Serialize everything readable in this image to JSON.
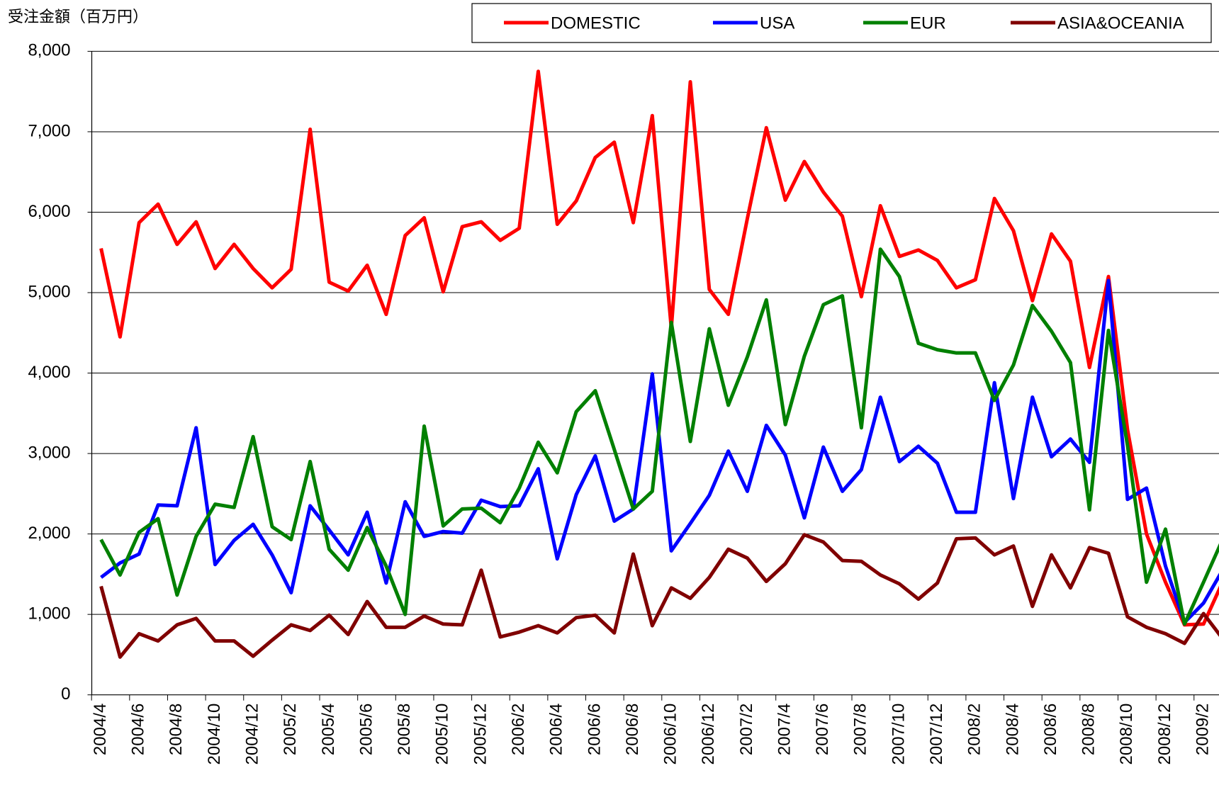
{
  "chart_data": {
    "type": "line",
    "y_axis_label": "受注金額（百万円）",
    "categories": [
      "2004/4",
      null,
      "2004/6",
      null,
      "2004/8",
      null,
      "2004/10",
      null,
      "2004/12",
      null,
      "2005/2",
      null,
      "2005/4",
      null,
      "2005/6",
      null,
      "2005/8",
      null,
      "2005/10",
      null,
      "2005/12",
      null,
      "2006/2",
      null,
      "2006/4",
      null,
      "2006/6",
      null,
      "2006/8",
      null,
      "2006/10",
      null,
      "2006/12",
      null,
      "2007/2",
      null,
      "2007/4",
      null,
      "2007/6",
      null,
      "2007/8",
      null,
      "2007/10",
      null,
      "2007/12",
      null,
      "2008/2",
      null,
      "2008/4",
      null,
      "2008/6",
      null,
      "2008/8",
      null,
      "2008/10",
      null,
      "2008/12",
      null,
      "2009/2",
      null
    ],
    "series": [
      {
        "name": "DOMESTIC",
        "color": "#ff0000",
        "values": [
          5550,
          4450,
          5870,
          6100,
          5600,
          5880,
          5300,
          5600,
          5300,
          5060,
          5290,
          7030,
          5130,
          5020,
          5340,
          4730,
          5710,
          5930,
          5010,
          5820,
          5880,
          5650,
          5800,
          7750,
          5850,
          6140,
          6680,
          6870,
          5870,
          7200,
          4560,
          7620,
          5040,
          4730,
          5920,
          7050,
          6150,
          6630,
          6250,
          5950,
          4950,
          6080,
          5450,
          5530,
          5400,
          5060,
          5160,
          6170,
          5770,
          4900,
          5730,
          5390,
          4070,
          5200,
          3300,
          2000,
          1400,
          870,
          880,
          1400
        ]
      },
      {
        "name": "USA",
        "color": "#0000ff",
        "values": [
          1460,
          1640,
          1750,
          2360,
          2350,
          3320,
          1620,
          1920,
          2120,
          1740,
          1270,
          2350,
          2050,
          1740,
          2270,
          1390,
          2400,
          1970,
          2030,
          2010,
          2420,
          2340,
          2350,
          2810,
          1690,
          2490,
          2970,
          2160,
          2310,
          3990,
          1790,
          2130,
          2480,
          3030,
          2530,
          3350,
          2980,
          2200,
          3080,
          2530,
          2800,
          3700,
          2900,
          3090,
          2880,
          2270,
          2270,
          3880,
          2440,
          3700,
          2960,
          3180,
          2890,
          5150,
          2430,
          2570,
          1600,
          900,
          1140,
          1550
        ]
      },
      {
        "name": "EUR",
        "color": "#008000",
        "values": [
          1930,
          1490,
          2020,
          2190,
          1240,
          1970,
          2370,
          2330,
          3210,
          2090,
          1930,
          2900,
          1810,
          1550,
          2080,
          1600,
          1000,
          3340,
          2100,
          2310,
          2320,
          2140,
          2570,
          3140,
          2760,
          3520,
          3780,
          3050,
          2310,
          2530,
          4630,
          3150,
          4550,
          3600,
          4200,
          4910,
          3360,
          4210,
          4850,
          4960,
          3320,
          5540,
          5200,
          4370,
          4290,
          4250,
          4250,
          3660,
          4100,
          4840,
          4520,
          4130,
          2300,
          4530,
          3100,
          1400,
          2060,
          880,
          1400,
          1930
        ]
      },
      {
        "name": "ASIA&OCEANIA",
        "color": "#800000",
        "values": [
          1350,
          470,
          760,
          670,
          870,
          950,
          670,
          670,
          480,
          680,
          870,
          800,
          990,
          750,
          1160,
          840,
          840,
          980,
          880,
          870,
          1550,
          720,
          780,
          860,
          770,
          960,
          990,
          770,
          1750,
          860,
          1330,
          1200,
          1460,
          1810,
          1700,
          1410,
          1630,
          1990,
          1900,
          1670,
          1660,
          1490,
          1380,
          1190,
          1390,
          1940,
          1950,
          1740,
          1850,
          1100,
          1740,
          1330,
          1830,
          1760,
          970,
          840,
          760,
          640,
          1010,
          700
        ]
      }
    ],
    "ylim": [
      0,
      8000
    ],
    "yticks": [
      0,
      {
        "value": 1000,
        "label": "1,000"
      },
      {
        "value": 2000,
        "label": "2,000"
      },
      {
        "value": 3000,
        "label": "3,000"
      },
      {
        "value": 4000,
        "label": "4,000"
      },
      {
        "value": 5000,
        "label": "5,000"
      },
      {
        "value": 6000,
        "label": "6,000"
      },
      {
        "value": 7000,
        "label": "7,000"
      },
      {
        "value": 8000,
        "label": "8,000"
      }
    ],
    "grid": true,
    "legend": "top"
  }
}
